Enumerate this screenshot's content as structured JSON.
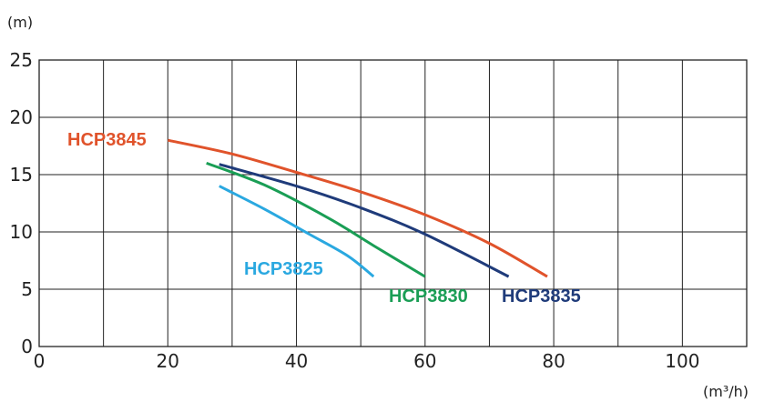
{
  "chart_data": {
    "type": "line",
    "title": "",
    "ylabel": "(m)",
    "xlabel": "(m³/h)",
    "xlim": [
      0,
      110
    ],
    "ylim": [
      0,
      25
    ],
    "x_ticks": [
      0,
      20,
      40,
      60,
      80,
      100
    ],
    "y_ticks": [
      0,
      5,
      10,
      15,
      20,
      25
    ],
    "grid": true,
    "legend": "inline labels",
    "series": [
      {
        "name": "HCP3845",
        "color": "#e0532b",
        "points": [
          [
            20,
            18.0
          ],
          [
            30,
            16.8
          ],
          [
            40,
            15.2
          ],
          [
            50,
            13.5
          ],
          [
            60,
            11.5
          ],
          [
            70,
            9.0
          ],
          [
            79,
            6.1
          ]
        ]
      },
      {
        "name": "HCP3835",
        "color": "#1f3b7a",
        "points": [
          [
            28,
            15.9
          ],
          [
            40,
            14.0
          ],
          [
            50,
            12.1
          ],
          [
            60,
            9.8
          ],
          [
            73,
            6.1
          ]
        ]
      },
      {
        "name": "HCP3830",
        "color": "#1a9e55",
        "points": [
          [
            26,
            16.0
          ],
          [
            35,
            14.1
          ],
          [
            45,
            11.2
          ],
          [
            52,
            8.8
          ],
          [
            60,
            6.1
          ]
        ]
      },
      {
        "name": "HCP3825",
        "color": "#2aa8e0",
        "points": [
          [
            28,
            14.0
          ],
          [
            35,
            12.0
          ],
          [
            42,
            9.8
          ],
          [
            48,
            7.9
          ],
          [
            52,
            6.1
          ]
        ]
      }
    ]
  }
}
